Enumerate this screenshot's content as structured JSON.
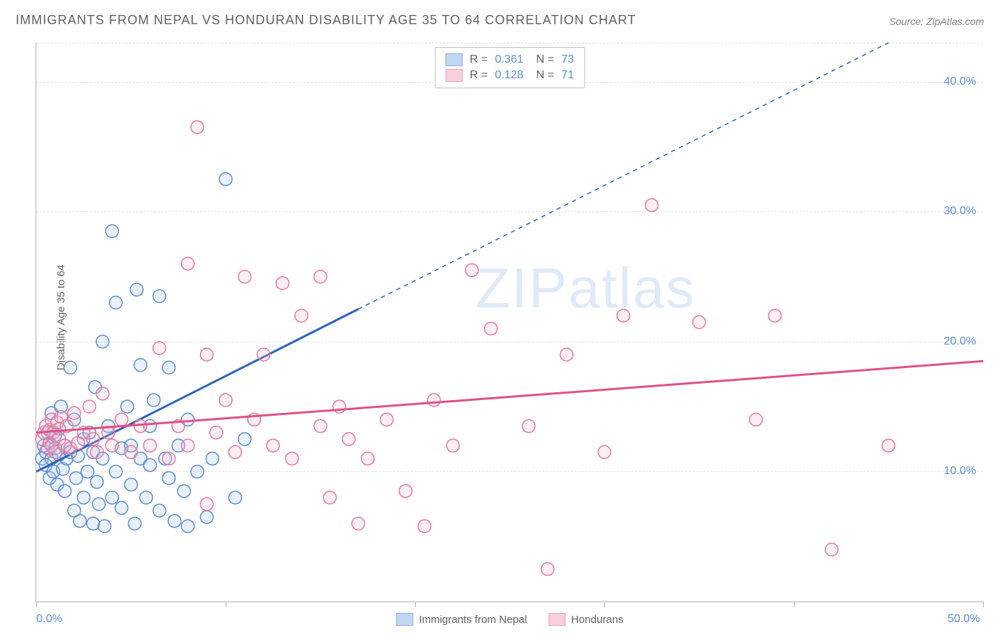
{
  "title": "IMMIGRANTS FROM NEPAL VS HONDURAN DISABILITY AGE 35 TO 64 CORRELATION CHART",
  "source_label": "Source: ZipAtlas.com",
  "ylabel": "Disability Age 35 to 64",
  "watermark": "ZIPatlas",
  "chart": {
    "type": "scatter",
    "xlim": [
      0,
      50
    ],
    "ylim": [
      0,
      43
    ],
    "x_ticks": [
      0,
      10,
      20,
      30,
      40,
      50
    ],
    "y_gridlines": [
      10,
      20,
      30,
      40,
      43
    ],
    "y_tick_labels": [
      10,
      20,
      30,
      40
    ],
    "x_tick_labels": [
      0,
      50
    ],
    "x_tick_suffix": ".0%",
    "y_tick_suffix": ".0%",
    "background_color": "#ffffff",
    "grid_color": "#e0e0e0",
    "axis_color": "#b0b0b0",
    "tick_label_color": "#5b8dd6",
    "axis_label_color": "#606060",
    "marker_radius": 9,
    "marker_stroke_width": 1.5,
    "marker_fill_opacity": 0.25,
    "trend_line_width": 3,
    "series": [
      {
        "name": "Immigrants from Nepal",
        "color_stroke": "#5b8dd6",
        "color_fill": "#a9c5ec",
        "trend_color": "#2a63b8",
        "R": "0.361",
        "N": "73",
        "trend_solid": {
          "x1": 0,
          "y1": 10,
          "x2": 17,
          "y2": 22.5
        },
        "trend_dash": {
          "x1": 17,
          "y1": 22.5,
          "x2": 45,
          "y2": 43
        },
        "points": [
          [
            0.3,
            11.0
          ],
          [
            0.4,
            12.0
          ],
          [
            0.5,
            10.5
          ],
          [
            0.5,
            11.5
          ],
          [
            0.6,
            13.0
          ],
          [
            0.7,
            9.5
          ],
          [
            0.7,
            12.2
          ],
          [
            0.8,
            11.0
          ],
          [
            0.8,
            14.5
          ],
          [
            0.9,
            10.0
          ],
          [
            1.0,
            11.8
          ],
          [
            1.0,
            12.8
          ],
          [
            1.1,
            9.0
          ],
          [
            1.2,
            11.3
          ],
          [
            1.2,
            13.3
          ],
          [
            1.3,
            15.0
          ],
          [
            1.4,
            10.2
          ],
          [
            1.5,
            12.0
          ],
          [
            1.5,
            8.5
          ],
          [
            1.6,
            11.0
          ],
          [
            1.8,
            18.0
          ],
          [
            1.8,
            11.5
          ],
          [
            2.0,
            7.0
          ],
          [
            2.0,
            14.0
          ],
          [
            2.1,
            9.5
          ],
          [
            2.2,
            11.2
          ],
          [
            2.3,
            6.2
          ],
          [
            2.5,
            12.5
          ],
          [
            2.5,
            8.0
          ],
          [
            2.7,
            10.0
          ],
          [
            2.8,
            13.0
          ],
          [
            3.0,
            6.0
          ],
          [
            3.0,
            11.5
          ],
          [
            3.1,
            16.5
          ],
          [
            3.2,
            9.2
          ],
          [
            3.3,
            7.5
          ],
          [
            3.5,
            11.0
          ],
          [
            3.5,
            20.0
          ],
          [
            3.6,
            5.8
          ],
          [
            3.8,
            13.5
          ],
          [
            4.0,
            8.0
          ],
          [
            4.0,
            28.5
          ],
          [
            4.2,
            10.0
          ],
          [
            4.2,
            23.0
          ],
          [
            4.5,
            11.8
          ],
          [
            4.5,
            7.2
          ],
          [
            4.8,
            15.0
          ],
          [
            5.0,
            9.0
          ],
          [
            5.0,
            12.0
          ],
          [
            5.2,
            6.0
          ],
          [
            5.3,
            24.0
          ],
          [
            5.5,
            11.0
          ],
          [
            5.5,
            18.2
          ],
          [
            5.8,
            8.0
          ],
          [
            6.0,
            13.5
          ],
          [
            6.0,
            10.5
          ],
          [
            6.2,
            15.5
          ],
          [
            6.5,
            7.0
          ],
          [
            6.5,
            23.5
          ],
          [
            6.8,
            11.0
          ],
          [
            7.0,
            9.5
          ],
          [
            7.0,
            18.0
          ],
          [
            7.3,
            6.2
          ],
          [
            7.5,
            12.0
          ],
          [
            7.8,
            8.5
          ],
          [
            8.0,
            5.8
          ],
          [
            8.0,
            14.0
          ],
          [
            8.5,
            10.0
          ],
          [
            9.0,
            6.5
          ],
          [
            9.3,
            11.0
          ],
          [
            10.0,
            32.5
          ],
          [
            10.5,
            8.0
          ],
          [
            11.0,
            12.5
          ]
        ]
      },
      {
        "name": "Hondurans",
        "color_stroke": "#e878a0",
        "color_fill": "#f5bcd0",
        "trend_color": "#e05088",
        "R": "0.128",
        "N": "71",
        "trend_solid": {
          "x1": 0,
          "y1": 13,
          "x2": 50,
          "y2": 18.5
        },
        "trend_dash": null,
        "points": [
          [
            0.3,
            12.5
          ],
          [
            0.4,
            13.0
          ],
          [
            0.5,
            13.5
          ],
          [
            0.6,
            11.8
          ],
          [
            0.7,
            13.2
          ],
          [
            0.8,
            12.0
          ],
          [
            0.8,
            14.0
          ],
          [
            0.9,
            13.0
          ],
          [
            1.0,
            11.5
          ],
          [
            1.1,
            13.8
          ],
          [
            1.2,
            12.5
          ],
          [
            1.3,
            14.2
          ],
          [
            1.5,
            12.0
          ],
          [
            1.6,
            13.5
          ],
          [
            1.8,
            11.8
          ],
          [
            2.0,
            14.5
          ],
          [
            2.2,
            12.2
          ],
          [
            2.5,
            13.0
          ],
          [
            2.8,
            15.0
          ],
          [
            3.0,
            12.5
          ],
          [
            3.2,
            11.5
          ],
          [
            3.5,
            16.0
          ],
          [
            3.8,
            13.0
          ],
          [
            4.0,
            12.0
          ],
          [
            4.5,
            14.0
          ],
          [
            5.0,
            11.5
          ],
          [
            5.5,
            13.5
          ],
          [
            6.0,
            12.0
          ],
          [
            6.5,
            19.5
          ],
          [
            7.0,
            11.0
          ],
          [
            7.5,
            13.5
          ],
          [
            8.0,
            26.0
          ],
          [
            8.0,
            12.0
          ],
          [
            8.5,
            36.5
          ],
          [
            9.0,
            19.0
          ],
          [
            9.0,
            7.5
          ],
          [
            9.5,
            13.0
          ],
          [
            10.0,
            15.5
          ],
          [
            10.5,
            11.5
          ],
          [
            11.0,
            25.0
          ],
          [
            11.5,
            14.0
          ],
          [
            12.0,
            19.0
          ],
          [
            12.5,
            12.0
          ],
          [
            13.0,
            24.5
          ],
          [
            13.5,
            11.0
          ],
          [
            14.0,
            22.0
          ],
          [
            15.0,
            13.5
          ],
          [
            15.0,
            25.0
          ],
          [
            15.5,
            8.0
          ],
          [
            16.0,
            15.0
          ],
          [
            16.5,
            12.5
          ],
          [
            17.0,
            6.0
          ],
          [
            17.5,
            11.0
          ],
          [
            18.5,
            14.0
          ],
          [
            19.5,
            8.5
          ],
          [
            20.5,
            5.8
          ],
          [
            21.0,
            15.5
          ],
          [
            22.0,
            12.0
          ],
          [
            23.0,
            25.5
          ],
          [
            24.0,
            21.0
          ],
          [
            26.0,
            13.5
          ],
          [
            27.0,
            2.5
          ],
          [
            28.0,
            19.0
          ],
          [
            30.0,
            11.5
          ],
          [
            31.0,
            22.0
          ],
          [
            32.5,
            30.5
          ],
          [
            35.0,
            21.5
          ],
          [
            38.0,
            14.0
          ],
          [
            39.0,
            22.0
          ],
          [
            42.0,
            4.0
          ],
          [
            45.0,
            12.0
          ]
        ]
      }
    ]
  },
  "bottom_legend": [
    {
      "label": "Immigrants from Nepal",
      "stroke": "#5b8dd6",
      "fill": "#a9c5ec"
    },
    {
      "label": "Hondurans",
      "stroke": "#e878a0",
      "fill": "#f5bcd0"
    }
  ]
}
